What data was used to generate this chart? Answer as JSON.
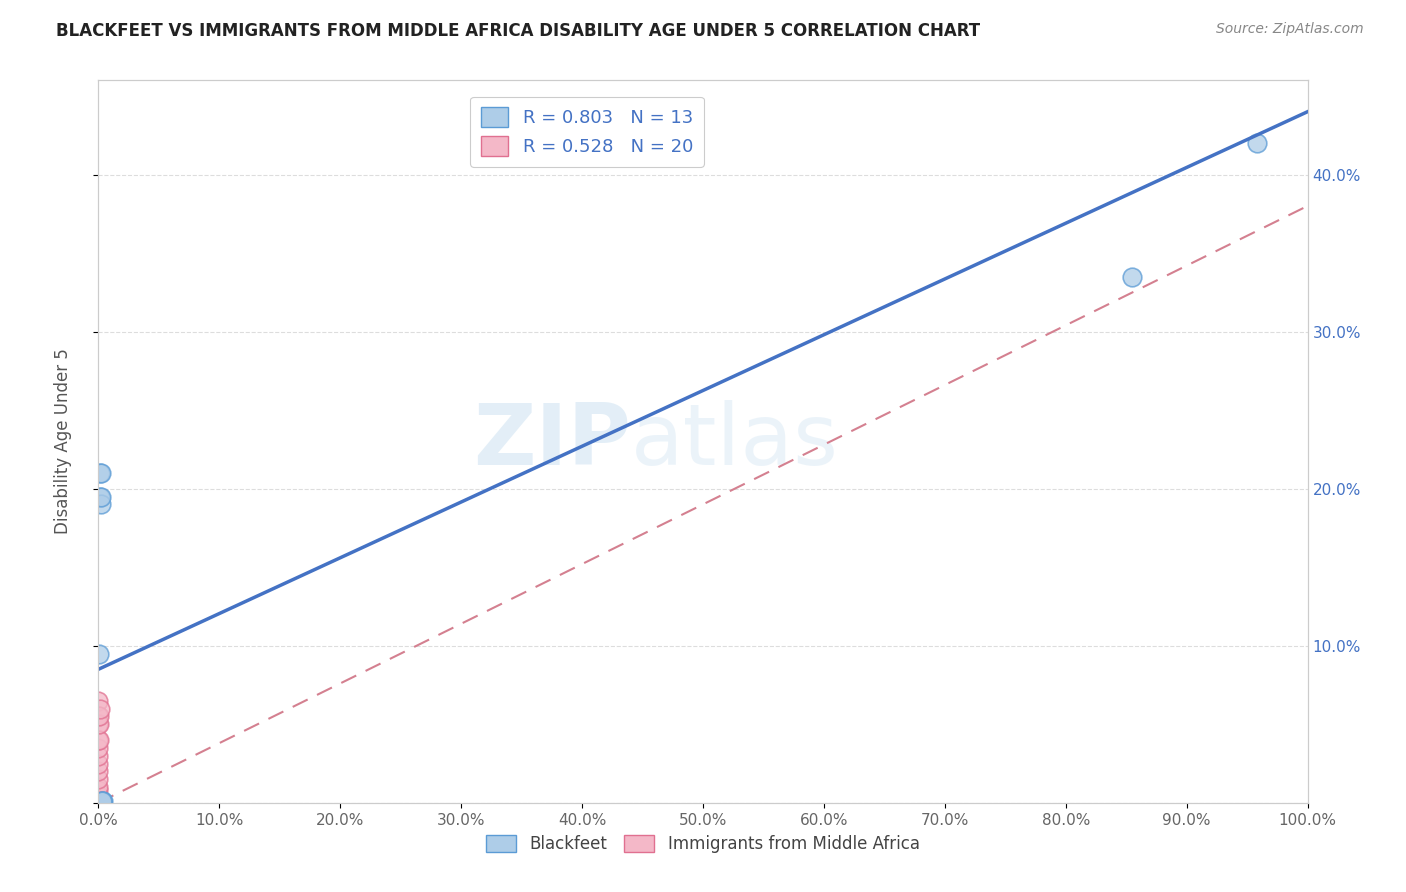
{
  "title": "BLACKFEET VS IMMIGRANTS FROM MIDDLE AFRICA DISABILITY AGE UNDER 5 CORRELATION CHART",
  "source": "Source: ZipAtlas.com",
  "ylabel": "Disability Age Under 5",
  "legend_label1": "Blackfeet",
  "legend_label2": "Immigrants from Middle Africa",
  "r1": 0.803,
  "n1": 13,
  "r2": 0.528,
  "n2": 20,
  "blue_fill": "#aecde8",
  "blue_edge": "#5b9bd5",
  "pink_fill": "#f4b8c8",
  "pink_edge": "#e07090",
  "blue_line_color": "#4472c4",
  "pink_line_color": "#d48090",
  "blue_scatter_x": [
    0.0008,
    0.0012,
    0.0015,
    0.0018,
    0.002,
    0.002,
    0.003,
    0.003,
    0.004,
    0.855,
    0.958,
    0.003,
    0.003
  ],
  "blue_scatter_y": [
    0.095,
    0.21,
    0.195,
    0.19,
    0.21,
    0.195,
    0.0,
    0.0,
    0.001,
    0.335,
    0.42,
    0.001,
    0.001
  ],
  "pink_scatter_x": [
    0.0,
    0.0,
    0.0,
    0.0,
    0.0,
    0.0,
    0.0,
    0.0,
    0.0,
    0.0,
    0.0,
    0.0,
    0.0,
    0.0,
    0.0,
    0.0005,
    0.0005,
    0.0008,
    0.001,
    0.002
  ],
  "pink_scatter_y": [
    0.0,
    0.0,
    0.0,
    0.005,
    0.008,
    0.01,
    0.015,
    0.02,
    0.025,
    0.03,
    0.035,
    0.04,
    0.05,
    0.055,
    0.065,
    0.04,
    0.05,
    0.055,
    0.06,
    0.001
  ],
  "blue_line_x0": 0.0,
  "blue_line_y0": 0.085,
  "blue_line_x1": 1.0,
  "blue_line_y1": 0.44,
  "pink_line_x0": 0.0,
  "pink_line_y0": 0.0,
  "pink_line_x1": 1.0,
  "pink_line_y1": 0.38,
  "xlim": [
    0.0,
    1.0
  ],
  "ylim": [
    0.0,
    0.46
  ],
  "xticks": [
    0.0,
    0.1,
    0.2,
    0.3,
    0.4,
    0.5,
    0.6,
    0.7,
    0.8,
    0.9,
    1.0
  ],
  "yticks": [
    0.0,
    0.1,
    0.2,
    0.3,
    0.4
  ],
  "ytick_labels_right": [
    "",
    "10.0%",
    "20.0%",
    "30.0%",
    "40.0%"
  ],
  "background_color": "#ffffff",
  "grid_color": "#dddddd",
  "watermark_zip": "ZIP",
  "watermark_atlas": "atlas",
  "marker_size": 180,
  "title_fontsize": 12,
  "source_fontsize": 10
}
